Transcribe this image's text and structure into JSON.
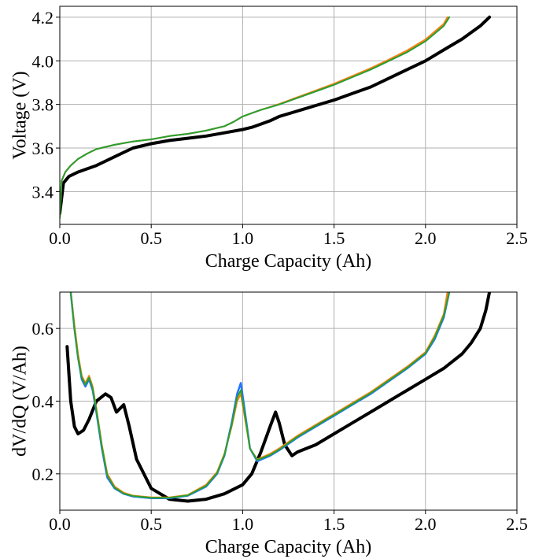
{
  "colors": {
    "black": "#000000",
    "blue": "#1f77ff",
    "orange": "#ff7f0e",
    "green": "#2ca02c",
    "grid": "#b0b0b0"
  },
  "chart_data": [
    {
      "type": "line",
      "xlabel": "Charge Capacity (Ah)",
      "ylabel": "Voltage (V)",
      "xlim": [
        0.0,
        2.5
      ],
      "ylim": [
        3.25,
        4.25
      ],
      "xticks": [
        "0.0",
        "0.5",
        "1.0",
        "1.5",
        "2.0",
        "2.5"
      ],
      "yticks": [
        "3.4",
        "3.6",
        "3.8",
        "4.0",
        "4.2"
      ],
      "grid": true,
      "series": [
        {
          "color": "#000000",
          "width": 4,
          "x": [
            0.0,
            0.02,
            0.05,
            0.1,
            0.2,
            0.3,
            0.4,
            0.5,
            0.6,
            0.7,
            0.8,
            0.9,
            1.0,
            1.05,
            1.1,
            1.15,
            1.2,
            1.3,
            1.4,
            1.5,
            1.6,
            1.7,
            1.8,
            1.9,
            2.0,
            2.1,
            2.2,
            2.3,
            2.35
          ],
          "y": [
            3.3,
            3.44,
            3.47,
            3.49,
            3.52,
            3.56,
            3.6,
            3.62,
            3.635,
            3.645,
            3.655,
            3.67,
            3.685,
            3.695,
            3.71,
            3.725,
            3.745,
            3.77,
            3.795,
            3.82,
            3.85,
            3.88,
            3.92,
            3.96,
            4.0,
            4.05,
            4.1,
            4.16,
            4.2
          ]
        },
        {
          "color": "#1f77ff",
          "width": 2,
          "x": [
            0.0,
            0.01,
            0.03,
            0.06,
            0.1,
            0.15,
            0.2,
            0.3,
            0.4,
            0.5,
            0.6,
            0.7,
            0.8,
            0.9,
            0.95,
            1.0,
            1.05,
            1.1,
            1.2,
            1.3,
            1.4,
            1.5,
            1.6,
            1.7,
            1.8,
            1.9,
            2.0,
            2.1,
            2.13
          ],
          "y": [
            3.28,
            3.45,
            3.49,
            3.52,
            3.55,
            3.575,
            3.595,
            3.615,
            3.63,
            3.64,
            3.655,
            3.665,
            3.68,
            3.7,
            3.72,
            3.745,
            3.76,
            3.775,
            3.8,
            3.83,
            3.86,
            3.89,
            3.925,
            3.96,
            4.0,
            4.04,
            4.09,
            4.16,
            4.2
          ]
        },
        {
          "color": "#ff7f0e",
          "width": 2,
          "x": [
            0.0,
            0.01,
            0.03,
            0.06,
            0.1,
            0.15,
            0.2,
            0.3,
            0.4,
            0.5,
            0.6,
            0.7,
            0.8,
            0.9,
            0.95,
            1.0,
            1.05,
            1.1,
            1.2,
            1.3,
            1.4,
            1.5,
            1.6,
            1.7,
            1.8,
            1.9,
            2.0,
            2.1,
            2.12
          ],
          "y": [
            3.28,
            3.45,
            3.49,
            3.52,
            3.55,
            3.575,
            3.595,
            3.615,
            3.63,
            3.64,
            3.655,
            3.665,
            3.68,
            3.7,
            3.72,
            3.745,
            3.76,
            3.775,
            3.802,
            3.833,
            3.864,
            3.895,
            3.93,
            3.966,
            4.006,
            4.048,
            4.098,
            4.17,
            4.2
          ]
        },
        {
          "color": "#2ca02c",
          "width": 2,
          "x": [
            0.0,
            0.01,
            0.03,
            0.06,
            0.1,
            0.15,
            0.2,
            0.3,
            0.4,
            0.5,
            0.6,
            0.7,
            0.8,
            0.9,
            0.95,
            1.0,
            1.05,
            1.1,
            1.2,
            1.3,
            1.4,
            1.5,
            1.6,
            1.7,
            1.8,
            1.9,
            2.0,
            2.1,
            2.13
          ],
          "y": [
            3.28,
            3.45,
            3.49,
            3.52,
            3.55,
            3.575,
            3.595,
            3.615,
            3.63,
            3.64,
            3.655,
            3.665,
            3.68,
            3.7,
            3.72,
            3.745,
            3.76,
            3.775,
            3.8,
            3.83,
            3.86,
            3.89,
            3.925,
            3.96,
            4.0,
            4.04,
            4.09,
            4.16,
            4.2
          ]
        }
      ]
    },
    {
      "type": "line",
      "xlabel": "Charge Capacity (Ah)",
      "ylabel": "dV/dQ (V/Ah)",
      "xlim": [
        0.0,
        2.5
      ],
      "ylim": [
        0.1,
        0.7
      ],
      "xticks": [
        "0.0",
        "0.5",
        "1.0",
        "1.5",
        "2.0",
        "2.5"
      ],
      "yticks": [
        "0.2",
        "0.4",
        "0.6"
      ],
      "grid": true,
      "series": [
        {
          "color": "#000000",
          "width": 4,
          "x": [
            0.04,
            0.06,
            0.08,
            0.1,
            0.13,
            0.16,
            0.2,
            0.25,
            0.28,
            0.31,
            0.35,
            0.38,
            0.42,
            0.5,
            0.6,
            0.7,
            0.8,
            0.9,
            1.0,
            1.05,
            1.1,
            1.15,
            1.18,
            1.2,
            1.23,
            1.27,
            1.3,
            1.4,
            1.5,
            1.6,
            1.7,
            1.8,
            1.9,
            2.0,
            2.1,
            2.2,
            2.25,
            2.3,
            2.33,
            2.35
          ],
          "y": [
            0.55,
            0.4,
            0.33,
            0.31,
            0.32,
            0.35,
            0.4,
            0.42,
            0.41,
            0.37,
            0.39,
            0.33,
            0.24,
            0.16,
            0.13,
            0.125,
            0.13,
            0.145,
            0.17,
            0.2,
            0.26,
            0.33,
            0.37,
            0.34,
            0.28,
            0.25,
            0.26,
            0.28,
            0.31,
            0.34,
            0.37,
            0.4,
            0.43,
            0.46,
            0.49,
            0.53,
            0.56,
            0.6,
            0.65,
            0.7
          ]
        },
        {
          "color": "#1f77ff",
          "width": 2.5,
          "x": [
            0.06,
            0.08,
            0.1,
            0.12,
            0.14,
            0.16,
            0.18,
            0.2,
            0.23,
            0.26,
            0.3,
            0.35,
            0.4,
            0.5,
            0.6,
            0.7,
            0.8,
            0.86,
            0.9,
            0.94,
            0.97,
            0.99,
            1.01,
            1.04,
            1.08,
            1.15,
            1.2,
            1.3,
            1.4,
            1.5,
            1.6,
            1.7,
            1.8,
            1.9,
            2.0,
            2.05,
            2.1,
            2.13
          ],
          "y": [
            0.7,
            0.6,
            0.52,
            0.46,
            0.44,
            0.46,
            0.43,
            0.37,
            0.27,
            0.19,
            0.16,
            0.145,
            0.138,
            0.133,
            0.133,
            0.14,
            0.165,
            0.2,
            0.25,
            0.34,
            0.42,
            0.45,
            0.38,
            0.27,
            0.235,
            0.25,
            0.265,
            0.3,
            0.33,
            0.36,
            0.39,
            0.42,
            0.455,
            0.49,
            0.53,
            0.57,
            0.63,
            0.7
          ]
        },
        {
          "color": "#ff7f0e",
          "width": 2,
          "x": [
            0.06,
            0.08,
            0.1,
            0.12,
            0.14,
            0.16,
            0.18,
            0.2,
            0.23,
            0.26,
            0.3,
            0.35,
            0.4,
            0.5,
            0.6,
            0.7,
            0.8,
            0.86,
            0.9,
            0.94,
            0.97,
            0.99,
            1.01,
            1.04,
            1.08,
            1.15,
            1.2,
            1.3,
            1.4,
            1.5,
            1.6,
            1.7,
            1.8,
            1.9,
            2.0,
            2.05,
            2.1,
            2.12
          ],
          "y": [
            0.7,
            0.61,
            0.53,
            0.47,
            0.45,
            0.47,
            0.44,
            0.38,
            0.28,
            0.2,
            0.165,
            0.148,
            0.14,
            0.135,
            0.135,
            0.142,
            0.17,
            0.205,
            0.255,
            0.33,
            0.4,
            0.42,
            0.36,
            0.27,
            0.24,
            0.255,
            0.27,
            0.305,
            0.335,
            0.365,
            0.395,
            0.425,
            0.46,
            0.495,
            0.535,
            0.58,
            0.64,
            0.7
          ]
        },
        {
          "color": "#2ca02c",
          "width": 2,
          "x": [
            0.06,
            0.08,
            0.1,
            0.12,
            0.14,
            0.16,
            0.18,
            0.2,
            0.23,
            0.26,
            0.3,
            0.35,
            0.4,
            0.5,
            0.6,
            0.7,
            0.8,
            0.86,
            0.9,
            0.94,
            0.97,
            0.99,
            1.01,
            1.04,
            1.08,
            1.15,
            1.2,
            1.3,
            1.4,
            1.5,
            1.6,
            1.7,
            1.8,
            1.9,
            2.0,
            2.05,
            2.1,
            2.13
          ],
          "y": [
            0.7,
            0.6,
            0.52,
            0.465,
            0.445,
            0.465,
            0.435,
            0.375,
            0.275,
            0.195,
            0.162,
            0.146,
            0.139,
            0.134,
            0.134,
            0.141,
            0.167,
            0.202,
            0.252,
            0.335,
            0.41,
            0.43,
            0.37,
            0.27,
            0.238,
            0.252,
            0.267,
            0.302,
            0.332,
            0.362,
            0.392,
            0.422,
            0.457,
            0.492,
            0.532,
            0.575,
            0.635,
            0.7
          ]
        }
      ]
    }
  ]
}
